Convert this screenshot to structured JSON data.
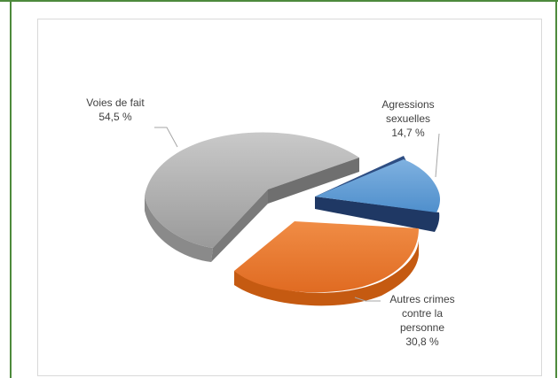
{
  "chart_data": {
    "type": "pie",
    "title": "",
    "style": "3d-exploded",
    "slices": [
      {
        "label": "Agressions sexuelles",
        "label_lines": [
          "Agressions",
          "sexuelles"
        ],
        "value": 14.7,
        "value_label": "14,7 %",
        "color": "#5b9bd5"
      },
      {
        "label": "Autres crimes contre la personne",
        "label_lines": [
          "Autres crimes",
          "contre la",
          "personne"
        ],
        "value": 30.8,
        "value_label": "30,8 %",
        "color": "#ed7d31"
      },
      {
        "label": "Voies de fait",
        "label_lines": [
          "Voies de fait"
        ],
        "value": 54.5,
        "value_label": "54,5 %",
        "color": "#a5a5a5"
      }
    ],
    "legend": "none"
  },
  "colors": {
    "frame_rule": "#4d8a3c",
    "blue_side": "#1f3864",
    "orange_side": "#c55a11",
    "gray_side": "#7f7f7f"
  }
}
